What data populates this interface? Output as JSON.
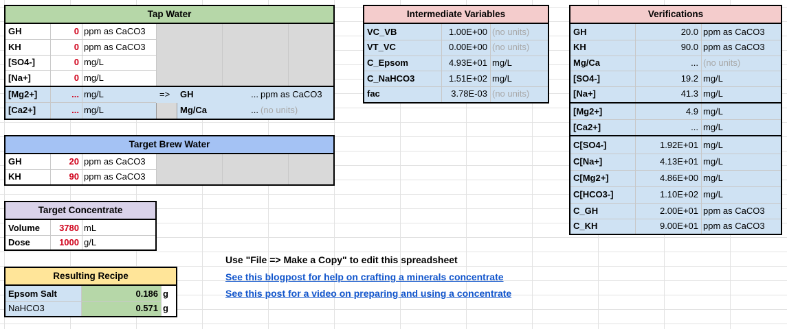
{
  "colors": {
    "input_red": "#d0021b",
    "header_green": "#b6d7a8",
    "header_blue": "#a4c2f4",
    "header_purple": "#d9d2e9",
    "header_yellow": "#ffe599",
    "header_pink": "#f4cccc",
    "cell_blue": "#cfe2f3",
    "cell_green": "#b6d7a8",
    "cell_gray": "#d9d9d9",
    "link_blue": "#1155cc"
  },
  "tap_water": {
    "title": "Tap Water",
    "rows": [
      {
        "label": "GH",
        "value": "0",
        "unit": "ppm as CaCO3"
      },
      {
        "label": "KH",
        "value": "0",
        "unit": "ppm as CaCO3"
      },
      {
        "label": "[SO4-]",
        "value": "0",
        "unit": "mg/L"
      },
      {
        "label": "[Na+]",
        "value": "0",
        "unit": "mg/L"
      }
    ],
    "mg_row": {
      "label": "[Mg2+]",
      "value": "...",
      "unit": "mg/L",
      "arrow": "=>",
      "out_label": "GH",
      "out_value": "...",
      "out_unit": "ppm as CaCO3"
    },
    "ca_row": {
      "label": "[Ca2+]",
      "value": "...",
      "unit": "mg/L",
      "out_label": "Mg/Ca",
      "out_value": "...",
      "out_unit": "(no units)"
    }
  },
  "target_brew": {
    "title": "Target Brew Water",
    "rows": [
      {
        "label": "GH",
        "value": "20",
        "unit": "ppm as CaCO3"
      },
      {
        "label": "KH",
        "value": "90",
        "unit": "ppm as CaCO3"
      }
    ]
  },
  "target_concentrate": {
    "title": "Target Concentrate",
    "rows": [
      {
        "label": "Volume",
        "value": "3780",
        "unit": "mL"
      },
      {
        "label": "Dose",
        "value": "1000",
        "unit": "g/L"
      }
    ]
  },
  "resulting_recipe": {
    "title": "Resulting Recipe",
    "rows": [
      {
        "label": "Epsom Salt",
        "value": "0.186",
        "unit": "g"
      },
      {
        "label": "NaHCO3",
        "value": "0.571",
        "unit": "g"
      }
    ]
  },
  "intermediate": {
    "title": "Intermediate Variables",
    "rows": [
      {
        "label": "VC_VB",
        "value": "1.00E+00",
        "unit": "(no units)"
      },
      {
        "label": "VT_VC",
        "value": "0.00E+00",
        "unit": "(no units)"
      },
      {
        "label": "C_Epsom",
        "value": "4.93E+01",
        "unit": "mg/L"
      },
      {
        "label": "C_NaHCO3",
        "value": "1.51E+02",
        "unit": "mg/L"
      },
      {
        "label": "fac",
        "value": "3.78E-03",
        "unit": "(no units)"
      }
    ]
  },
  "verifications": {
    "title": "Verifications",
    "group1": [
      {
        "label": "GH",
        "value": "20.0",
        "unit": "ppm as CaCO3"
      },
      {
        "label": "KH",
        "value": "90.0",
        "unit": "ppm as CaCO3"
      },
      {
        "label": "Mg/Ca",
        "value": "...",
        "unit": "(no units)"
      },
      {
        "label": "[SO4-]",
        "value": "19.2",
        "unit": "mg/L"
      },
      {
        "label": "[Na+]",
        "value": "41.3",
        "unit": "mg/L"
      }
    ],
    "group2": [
      {
        "label": "[Mg2+]",
        "value": "4.9",
        "unit": "mg/L"
      },
      {
        "label": "[Ca2+]",
        "value": "...",
        "unit": "mg/L"
      }
    ],
    "group3": [
      {
        "label": "C[SO4-]",
        "value": "1.92E+01",
        "unit": "mg/L"
      },
      {
        "label": "C[Na+]",
        "value": "4.13E+01",
        "unit": "mg/L"
      },
      {
        "label": "C[Mg2+]",
        "value": "4.86E+00",
        "unit": "mg/L"
      },
      {
        "label": "C[HCO3-]",
        "value": "1.10E+02",
        "unit": "mg/L"
      },
      {
        "label": "C_GH",
        "value": "2.00E+01",
        "unit": "ppm as CaCO3"
      },
      {
        "label": "C_KH",
        "value": "9.00E+01",
        "unit": "ppm as CaCO3"
      }
    ]
  },
  "notes": {
    "copy_hint": "Use \"File => Make a Copy\" to edit this spreadsheet",
    "link1": "See this blogpost for help on crafting a minerals concentrate",
    "link2": "See this post for a video on preparing and using a concentrate"
  }
}
